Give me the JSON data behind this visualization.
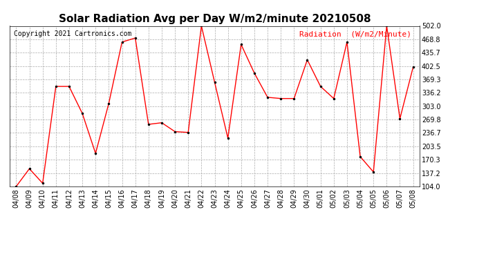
{
  "title": "Solar Radiation Avg per Day W/m2/minute 20210508",
  "copyright_text": "Copyright 2021 Cartronics.com",
  "legend_label": "Radiation  (W/m2/Minute)",
  "dates": [
    "04/08",
    "04/09",
    "04/10",
    "04/11",
    "04/12",
    "04/13",
    "04/14",
    "04/15",
    "04/16",
    "04/17",
    "04/18",
    "04/19",
    "04/20",
    "04/21",
    "04/22",
    "04/23",
    "04/24",
    "04/25",
    "04/26",
    "04/27",
    "04/28",
    "04/29",
    "04/30",
    "05/01",
    "05/02",
    "05/03",
    "05/04",
    "05/05",
    "05/06",
    "05/07",
    "05/08"
  ],
  "values": [
    104.0,
    148.0,
    112.0,
    352.0,
    352.0,
    285.0,
    186.0,
    310.0,
    462.0,
    472.0,
    258.0,
    262.0,
    240.0,
    238.0,
    502.0,
    362.0,
    224.0,
    456.0,
    385.0,
    325.0,
    322.0,
    322.0,
    418.0,
    352.0,
    322.0,
    462.0,
    178.0,
    140.0,
    502.0,
    272.0,
    400.0
  ],
  "line_color": "red",
  "marker_color": "black",
  "bg_color": "white",
  "grid_color": "#aaaaaa",
  "ylim_min": 104.0,
  "ylim_max": 502.0,
  "ytick_values": [
    104.0,
    137.2,
    170.3,
    203.5,
    236.7,
    269.8,
    303.0,
    336.2,
    369.3,
    402.5,
    435.7,
    468.8,
    502.0
  ],
  "title_fontsize": 11,
  "copyright_fontsize": 7,
  "legend_fontsize": 8,
  "tick_fontsize": 7
}
